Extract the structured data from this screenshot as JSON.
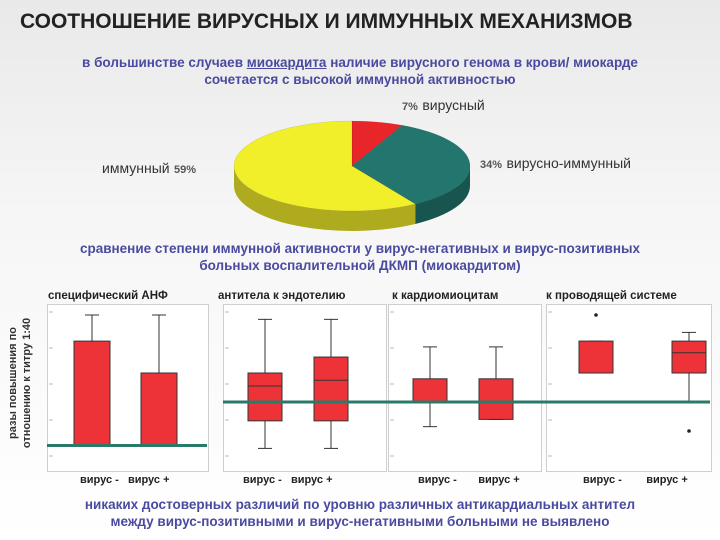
{
  "title": "СООТНОШЕНИЕ ВИРУСНЫХ И ИММУННЫХ МЕХАНИЗМОВ",
  "subtitle1": {
    "before": "в большинстве случаев ",
    "underlined": "миокардита",
    "after": " наличие вирусного генома в крови/ миокарде",
    "line2": "сочетается с высокой иммунной активностью"
  },
  "subtitle2": {
    "line1": "сравнение степени иммунной активности у вирус-негативных и вирус-позитивных",
    "line2": "больных воспалительной ДКМП (миокардитом)"
  },
  "y_axis_label": {
    "line1": "разы повышения по",
    "line2": "отношению к титру 1:40"
  },
  "conclusion": {
    "line1": "никаких достоверных различий по уровню различных антикардиальных антител",
    "line2": "между вирус-позитивными и вирус-негативными больными не выявлено"
  },
  "colors": {
    "red": "#e8262a",
    "teal": "#22766e",
    "yellow": "#f1ee2a",
    "box_red": "#ee3338",
    "line_teal": "#2a7a6a"
  },
  "chart_data": [
    {
      "type": "pie",
      "slices": [
        {
          "label": "вирусный",
          "pct_text": "7%",
          "value": 7,
          "color": "#e8262a"
        },
        {
          "label": "вирусно-иммунный",
          "pct_text": "34%",
          "value": 34,
          "color": "#22766e"
        },
        {
          "label": "иммунный",
          "pct_text": "59%",
          "value": 59,
          "color": "#f1ee2a"
        }
      ]
    },
    {
      "type": "boxplot",
      "panels": [
        {
          "title": "специфический АНФ",
          "categories": [
            "вирус -",
            "вирус +"
          ],
          "boxes": [
            {
              "whisker_low": 0.1,
              "q1": 0.1,
              "median": 0.1,
              "q3": 0.82,
              "whisker_high": 1.0
            },
            {
              "whisker_low": 0.1,
              "q1": 0.1,
              "median": 0.1,
              "q3": 0.6,
              "whisker_high": 1.0
            }
          ],
          "reference_line": 0.1
        },
        {
          "title": "антитела к эндотелию",
          "categories": [
            "вирус -",
            "вирус +"
          ],
          "boxes": [
            {
              "whisker_low": 0.08,
              "q1": 0.27,
              "median": 0.51,
              "q3": 0.6,
              "whisker_high": 0.97
            },
            {
              "whisker_low": 0.08,
              "q1": 0.27,
              "median": 0.55,
              "q3": 0.71,
              "whisker_high": 0.97
            }
          ],
          "reference_line": 0.4
        },
        {
          "title": "к кардиомиоцитам",
          "categories": [
            "вирус -",
            "вирус +"
          ],
          "boxes": [
            {
              "whisker_low": 0.23,
              "q1": 0.4,
              "median": 0.4,
              "q3": 0.56,
              "whisker_high": 0.78
            },
            {
              "whisker_low": 0.28,
              "q1": 0.28,
              "median": 0.4,
              "q3": 0.56,
              "whisker_high": 0.78
            }
          ],
          "reference_line": 0.4
        },
        {
          "title": "к проводящей системе",
          "categories": [
            "вирус -",
            "вирус +"
          ],
          "boxes": [
            {
              "whisker_low": 0.6,
              "q1": 0.6,
              "median": 0.6,
              "q3": 0.82,
              "whisker_high": 0.82,
              "outliers": [
                1.0
              ]
            },
            {
              "whisker_low": 0.4,
              "q1": 0.6,
              "median": 0.74,
              "q3": 0.82,
              "whisker_high": 0.88,
              "outliers": [
                0.2
              ]
            }
          ],
          "reference_line": 0.4
        }
      ]
    }
  ]
}
